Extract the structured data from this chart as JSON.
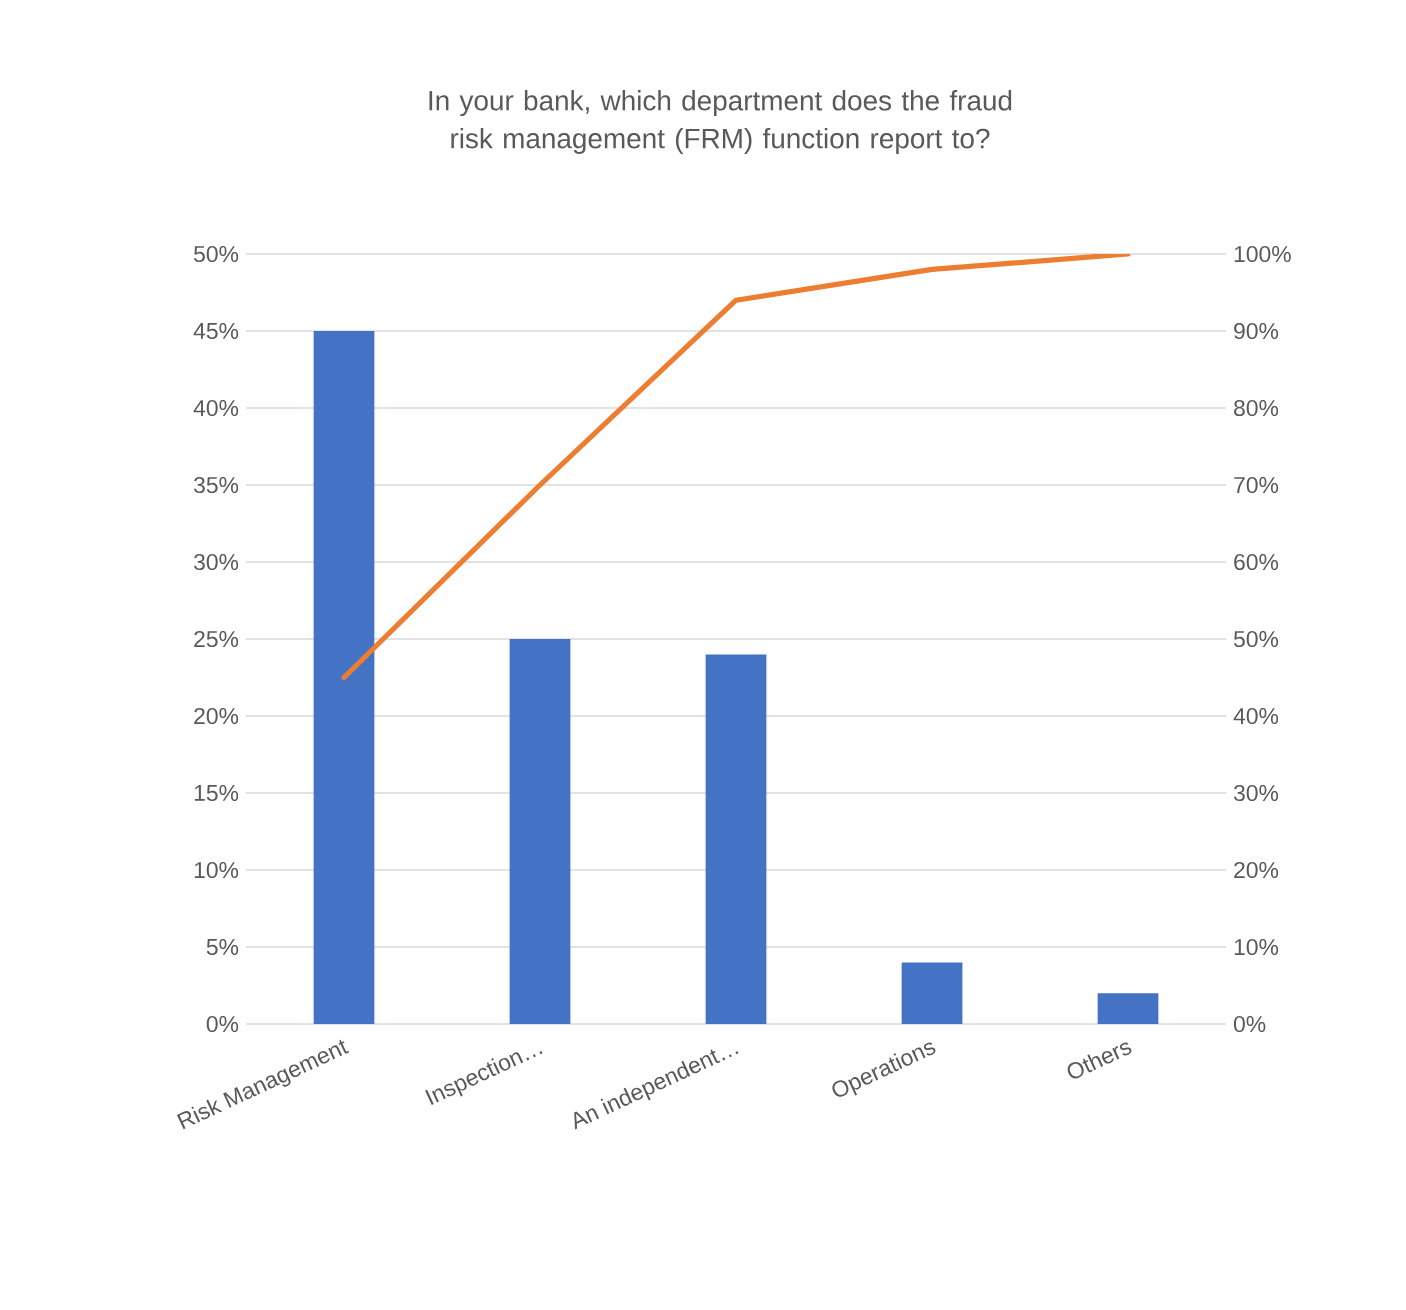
{
  "chart_data": {
    "type": "bar",
    "title": "In your bank, which department does the fraud risk management (FRM) function report to?",
    "categories": [
      "Risk Management",
      "Inspection…",
      "An independent…",
      "Operations",
      "Others"
    ],
    "series": [
      {
        "color": "#4472c4",
        "values": [
          45,
          25,
          24,
          4,
          2
        ]
      },
      {
        "type": "line",
        "axis": "y2",
        "color": "#ed7d31",
        "values": [
          45,
          70,
          94,
          98,
          100
        ]
      }
    ],
    "ylim": [
      0,
      50
    ],
    "yticks": [
      {
        "value": 0,
        "label": "0%"
      },
      {
        "value": 5,
        "label": "5%"
      },
      {
        "value": 10,
        "label": "10%"
      },
      {
        "value": 15,
        "label": "15%"
      },
      {
        "value": 20,
        "label": "20%"
      },
      {
        "value": 25,
        "label": "25%"
      },
      {
        "value": 30,
        "label": "30%"
      },
      {
        "value": 35,
        "label": "35%"
      },
      {
        "value": 40,
        "label": "40%"
      },
      {
        "value": 45,
        "label": "45%"
      },
      {
        "value": 50,
        "label": "50%"
      }
    ],
    "y2lim": [
      0,
      100
    ],
    "y2ticks": [
      {
        "value": 0,
        "label": "0%"
      },
      {
        "value": 10,
        "label": "10%"
      },
      {
        "value": 20,
        "label": "20%"
      },
      {
        "value": 30,
        "label": "30%"
      },
      {
        "value": 40,
        "label": "40%"
      },
      {
        "value": 50,
        "label": "50%"
      },
      {
        "value": 60,
        "label": "60%"
      },
      {
        "value": 70,
        "label": "70%"
      },
      {
        "value": 80,
        "label": "80%"
      },
      {
        "value": 90,
        "label": "90%"
      },
      {
        "value": 100,
        "label": "100%"
      }
    ],
    "grid": "y"
  }
}
